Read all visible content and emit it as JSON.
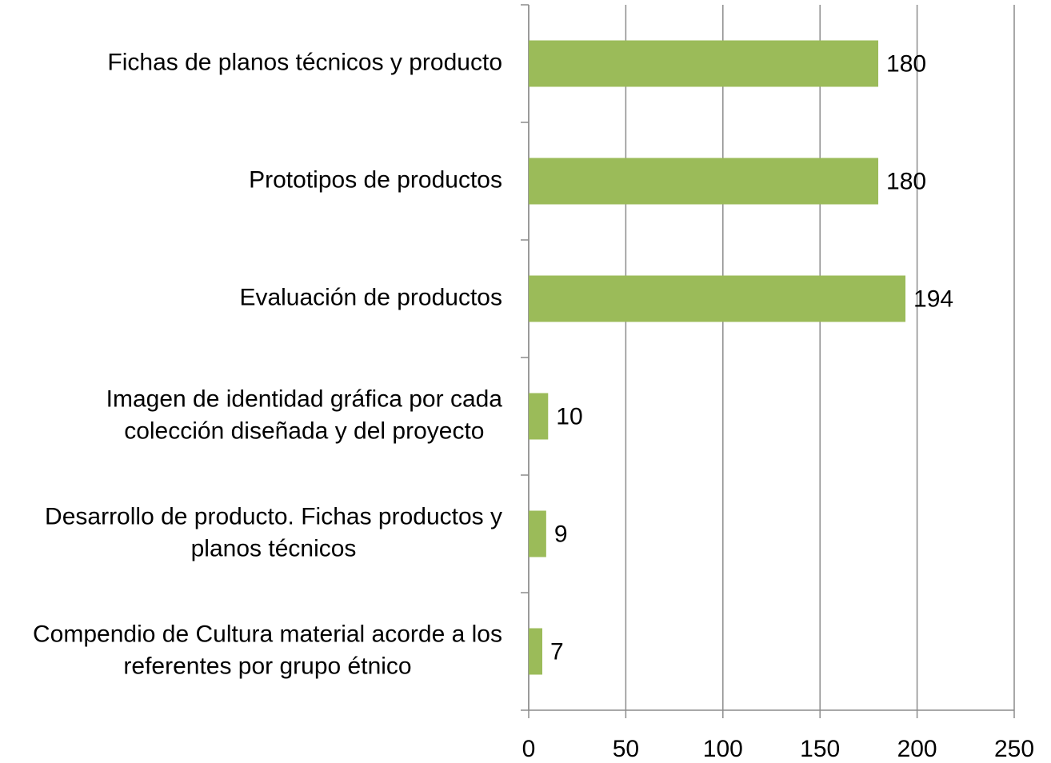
{
  "chart_data": {
    "type": "barh",
    "categories": [
      "Fichas de planos técnicos y producto",
      "Prototipos de productos",
      "Evaluación de productos",
      "Imagen de identidad gráfica por cada colección diseñada y del proyecto",
      "Desarrollo de producto. Fichas productos y planos técnicos",
      "Compendio de Cultura material acorde a los referentes por grupo étnico"
    ],
    "values": [
      180,
      180,
      194,
      10,
      9,
      7
    ],
    "color": "#9bbb59",
    "xlim": [
      0,
      250
    ],
    "xticks": [
      0,
      50,
      100,
      150,
      200,
      250
    ],
    "grid": true
  }
}
